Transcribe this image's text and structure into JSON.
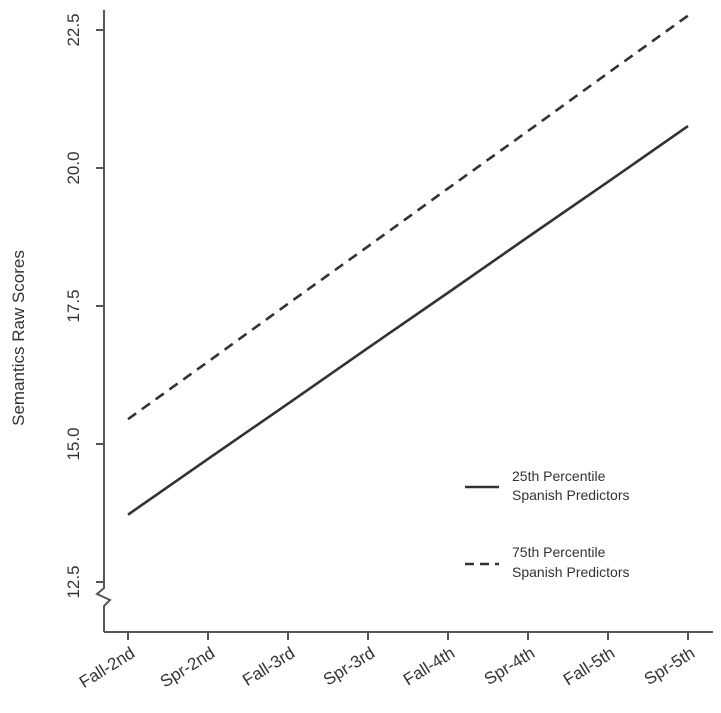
{
  "chart_data": {
    "type": "line",
    "categories": [
      "Fall-2nd",
      "Spr-2nd",
      "Fall-3rd",
      "Spr-3rd",
      "Fall-4th",
      "Spr-4th",
      "Fall-5th",
      "Spr-5th"
    ],
    "ylabel": "Semantics Raw Scores",
    "xlabel": "",
    "ylim": [
      11.8,
      22.75
    ],
    "yticks": [
      "12.5",
      "15.0",
      "17.5",
      "20.0",
      "22.5"
    ],
    "axis_break": true,
    "grid": false,
    "legend_position": "right",
    "series": [
      {
        "name_line1": "25th Percentile",
        "name_line2": "Spanish Predictors",
        "style": "solid",
        "color": "#333333",
        "values": [
          13.72,
          14.73,
          15.73,
          16.74,
          17.74,
          18.75,
          19.75,
          20.76
        ]
      },
      {
        "name_line1": "75th Percentile",
        "name_line2": "Spanish Predictors",
        "style": "dashed",
        "color": "#333333",
        "values": [
          15.45,
          16.49,
          17.54,
          18.58,
          19.63,
          20.67,
          21.72,
          22.76
        ]
      }
    ]
  }
}
